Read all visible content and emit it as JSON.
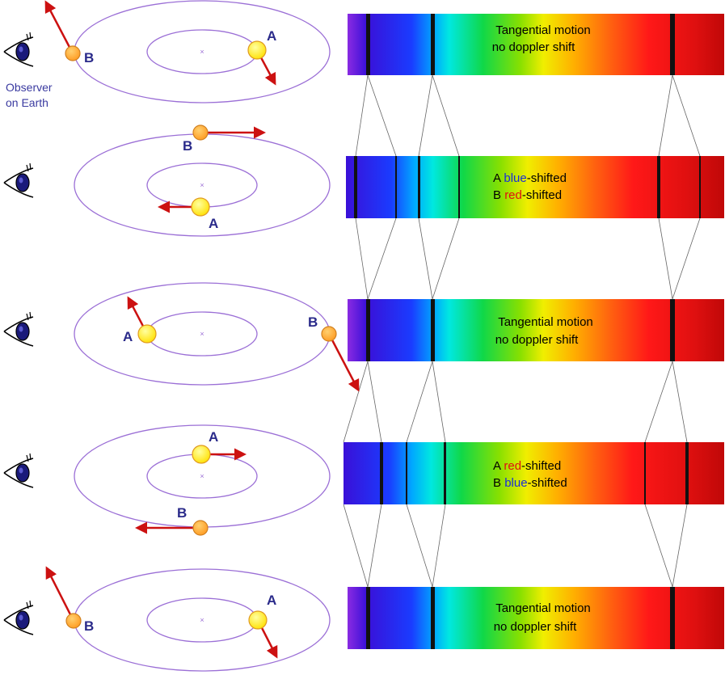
{
  "observer": {
    "label_line1": "Observer",
    "label_line2": "on Earth"
  },
  "colors": {
    "orbit": "#9b6fd6",
    "star_fill": "#ffee22",
    "star_stroke": "#e09a20",
    "star_b_fill": "#ffb640",
    "arrow": "#cc1111",
    "label": "#2a2a8a",
    "observer_text": "#3a3aa0",
    "blue_word": "#1a2fd8",
    "red_word": "#e01010",
    "connector": "#666666"
  },
  "panels": [
    {
      "id": "p1",
      "star_a_label": "A",
      "star_b_label": "B",
      "caption_line1": "Tangential motion",
      "caption_line2": "no doppler shift"
    },
    {
      "id": "p2",
      "star_a_label": "A",
      "star_b_label": "B",
      "caption_line1": {
        "prefix": "A ",
        "colored": "blue",
        "suffix": "-shifted"
      },
      "caption_line2": {
        "prefix": "B ",
        "colored": "red",
        "suffix": "-shifted"
      }
    },
    {
      "id": "p3",
      "star_a_label": "A",
      "star_b_label": "B",
      "caption_line1": "Tangential motion",
      "caption_line2": "no doppler shift"
    },
    {
      "id": "p4",
      "star_a_label": "A",
      "star_b_label": "B",
      "caption_line1": {
        "prefix": "A ",
        "colored": "red",
        "suffix": "-shifted"
      },
      "caption_line2": {
        "prefix": "B ",
        "colored": "blue",
        "suffix": "-shifted"
      }
    },
    {
      "id": "p5",
      "star_a_label": "A",
      "star_b_label": "B",
      "caption_line1": "Tangential motion",
      "caption_line2": "no doppler shift"
    }
  ]
}
